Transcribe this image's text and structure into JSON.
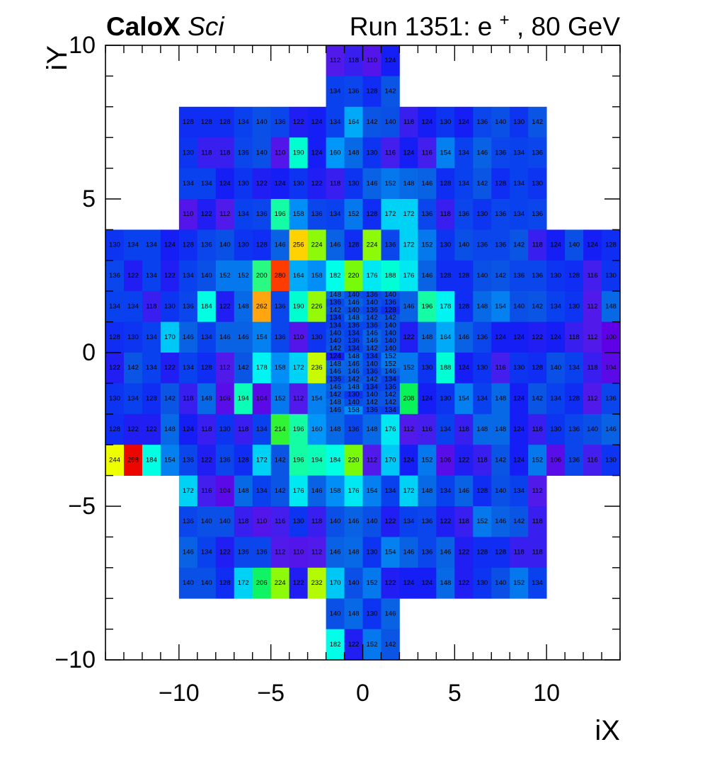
{
  "header": {
    "experiment": "CaloX",
    "subsystem": "Sci",
    "run_prefix": "Run 1351: e",
    "run_superscript": "+",
    "run_suffix": ", 80 GeV"
  },
  "chart_data": {
    "type": "heatmap",
    "xlabel": "iX",
    "ylabel": "iY",
    "xlim": [
      -14,
      14
    ],
    "ylim": [
      -10,
      10
    ],
    "xticks": [
      -10,
      -5,
      0,
      5,
      10
    ],
    "xtick_labels": [
      "−10",
      "−5",
      "0",
      "5",
      "10"
    ],
    "yticks": [
      -10,
      -5,
      0,
      5,
      10
    ],
    "ytick_labels": [
      "−10",
      "−5",
      "0",
      "5",
      "10"
    ],
    "color_scale": {
      "min": 100,
      "max": 300,
      "palette": "rainbow"
    },
    "outer_rows": [
      {
        "y": 9,
        "x0": -2,
        "values": [
          112,
          118,
          110,
          124
        ]
      },
      {
        "y": 8,
        "x0": -2,
        "values": [
          134,
          136,
          128,
          142
        ]
      },
      {
        "y": 7,
        "x0": -10,
        "values": [
          128,
          128,
          128,
          134,
          140,
          136,
          122,
          124,
          134,
          164,
          142,
          140,
          118,
          124,
          130,
          124,
          136,
          140,
          130,
          142
        ]
      },
      {
        "y": 6,
        "x0": -10,
        "values": [
          130,
          118,
          118,
          136,
          140,
          110,
          190,
          124,
          160,
          148,
          130,
          116,
          124,
          116,
          154,
          134,
          146,
          136,
          134,
          136
        ]
      },
      {
        "y": 5,
        "x0": -10,
        "values": [
          134,
          134,
          124,
          130,
          122,
          124,
          130,
          122,
          118,
          130,
          146,
          152,
          148,
          146,
          128,
          134,
          142,
          128,
          134,
          130
        ]
      },
      {
        "y": 4,
        "x0": -10,
        "values": [
          110,
          122,
          112,
          134,
          136,
          196,
          158,
          136,
          134,
          152,
          128,
          172,
          172,
          136,
          118,
          136,
          130,
          136,
          134,
          136
        ]
      },
      {
        "y": 3,
        "x0": -14,
        "values": [
          130,
          134,
          134,
          124,
          128,
          136,
          140,
          130,
          128,
          146,
          256,
          224,
          146,
          128,
          224,
          136,
          172,
          152,
          130,
          140,
          136,
          136,
          142,
          118,
          124,
          140,
          124,
          128
        ]
      },
      {
        "y": 2,
        "x0": -14,
        "values": [
          136,
          122,
          134,
          122,
          134,
          140,
          152,
          152,
          200,
          280,
          164,
          158,
          182,
          220,
          176,
          188,
          176,
          146,
          128,
          128,
          140,
          142,
          136,
          136,
          130,
          128,
          116,
          130
        ]
      },
      {
        "y": 1,
        "x0": -14,
        "values": [
          134,
          134,
          118,
          130,
          136,
          184,
          122,
          148,
          262,
          136,
          190,
          226,
          null,
          null,
          null,
          null,
          146,
          196,
          178,
          128,
          148,
          154,
          140,
          142,
          134,
          130,
          112,
          148
        ]
      },
      {
        "y": 0,
        "x0": -14,
        "values": [
          128,
          130,
          134,
          170,
          146,
          134,
          146,
          146,
          154,
          136,
          110,
          130,
          null,
          null,
          null,
          null,
          122,
          148,
          164,
          146,
          136,
          124,
          124,
          122,
          124,
          118,
          112,
          100
        ]
      },
      {
        "y": -1,
        "x0": -14,
        "values": [
          122,
          142,
          134,
          122,
          134,
          128,
          112,
          142,
          178,
          158,
          172,
          236,
          null,
          null,
          null,
          null,
          152,
          130,
          188,
          124,
          130,
          116,
          130,
          128,
          140,
          134,
          118,
          104
        ]
      },
      {
        "y": -2,
        "x0": -14,
        "values": [
          130,
          134,
          128,
          142,
          118,
          148,
          106,
          194,
          104,
          152,
          112,
          154,
          null,
          null,
          null,
          null,
          208,
          124,
          130,
          154,
          134,
          148,
          124,
          142,
          134,
          128,
          112,
          136
        ]
      },
      {
        "y": -3,
        "x0": -14,
        "values": [
          128,
          122,
          122,
          148,
          124,
          118,
          130,
          118,
          134,
          214,
          196,
          160,
          148,
          136,
          148,
          176,
          112,
          116,
          134,
          118,
          148,
          148,
          124,
          118,
          130,
          136,
          140,
          146
        ]
      },
      {
        "y": -4,
        "x0": -14,
        "values": [
          244,
          298,
          184,
          154,
          136,
          122,
          136,
          128,
          172,
          142,
          196,
          194,
          184,
          220,
          112,
          170,
          124,
          152,
          106,
          122,
          118,
          142,
          124,
          152,
          106,
          136,
          116,
          130
        ]
      },
      {
        "y": -5,
        "x0": -10,
        "values": [
          172,
          116,
          104,
          148,
          134,
          142,
          176,
          146,
          158,
          176,
          154,
          134,
          172,
          148,
          134,
          146,
          128,
          140,
          134,
          112
        ]
      },
      {
        "y": -6,
        "x0": -10,
        "values": [
          136,
          140,
          140,
          118,
          110,
          116,
          130,
          118,
          140,
          146,
          140,
          122,
          134,
          136,
          122,
          118,
          152,
          146,
          142,
          118
        ]
      },
      {
        "y": -7,
        "x0": -10,
        "values": [
          146,
          134,
          122,
          136,
          136,
          112,
          110,
          112,
          146,
          148,
          130,
          154,
          146,
          136,
          146,
          122,
          128,
          128,
          118,
          118
        ]
      },
      {
        "y": -8,
        "x0": -10,
        "values": [
          140,
          140,
          128,
          172,
          206,
          224,
          122,
          232,
          170,
          140,
          152,
          122,
          124,
          124,
          148,
          122,
          130,
          140,
          152,
          134
        ]
      },
      {
        "y": -9,
        "x0": -2,
        "values": [
          140,
          148,
          130,
          146
        ]
      },
      {
        "y": -10,
        "x0": -2,
        "values": [
          182,
          122,
          152,
          142
        ]
      }
    ],
    "fine_region": {
      "x_range": [
        -2,
        2
      ],
      "y_top": 2,
      "rows": [
        [
          148,
          140,
          136,
          140
        ],
        [
          136,
          146,
          140,
          136
        ],
        [
          142,
          140,
          136,
          128
        ],
        [
          134,
          148,
          142,
          142
        ],
        [
          134,
          136,
          136,
          140
        ],
        [
          140,
          134,
          146,
          140
        ],
        [
          140,
          136,
          146,
          140
        ],
        [
          142,
          134,
          142,
          140
        ],
        [
          124,
          148,
          134,
          152
        ],
        [
          148,
          146,
          140,
          152
        ],
        [
          146,
          146,
          136,
          146
        ],
        [
          136,
          142,
          142,
          134
        ],
        [
          146,
          148,
          134,
          136
        ],
        [
          142,
          130,
          140,
          142
        ],
        [
          148,
          140,
          142,
          142
        ],
        [
          146,
          158,
          136,
          134
        ]
      ]
    }
  }
}
